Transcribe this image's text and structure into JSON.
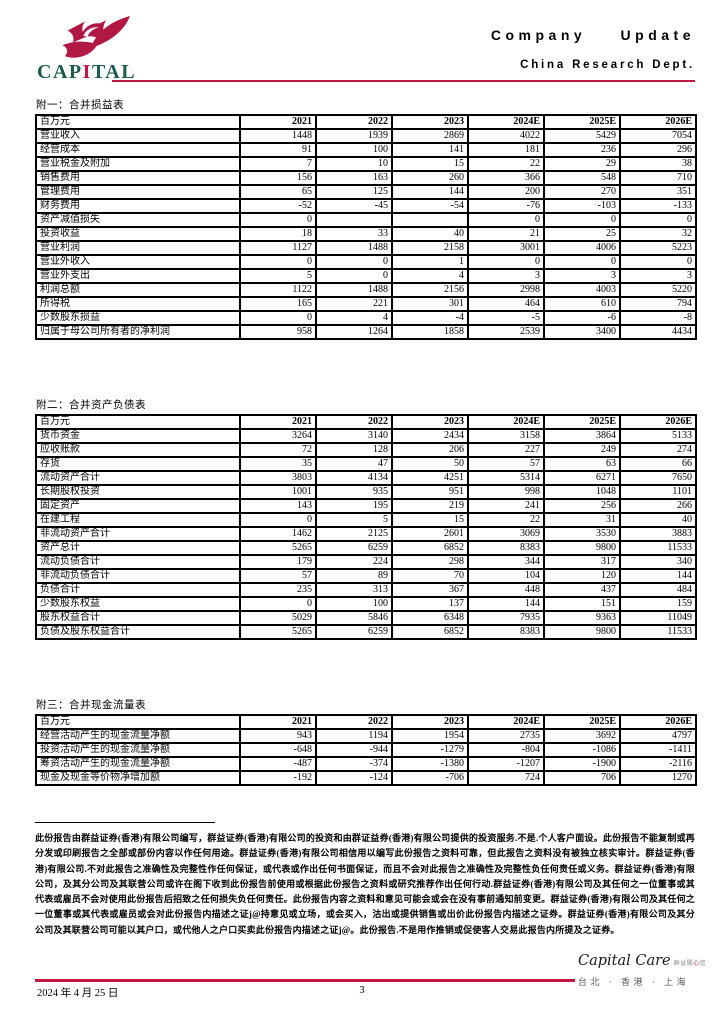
{
  "accent_color": "#c01743",
  "logo_green": "#1c5c4e",
  "header": {
    "logo": {
      "pre": "CAP",
      "accent_letter": "I",
      "post": "TAL"
    },
    "doc_type": "Company Update",
    "dept": "China Research Dept."
  },
  "tables": [
    {
      "caption": "附一：合并损益表",
      "unit_label": "百万元",
      "columns": [
        "2021",
        "2022",
        "2023",
        "2024E",
        "2025E",
        "2026E"
      ],
      "rows": [
        {
          "label": "营业收入",
          "values": [
            "1448",
            "1939",
            "2869",
            "4022",
            "5429",
            "7054"
          ]
        },
        {
          "label": "经营成本",
          "values": [
            "91",
            "100",
            "141",
            "181",
            "236",
            "296"
          ]
        },
        {
          "label": "营业税金及附加",
          "values": [
            "7",
            "10",
            "15",
            "22",
            "29",
            "38"
          ]
        },
        {
          "label": "销售费用",
          "values": [
            "156",
            "163",
            "260",
            "366",
            "548",
            "710"
          ]
        },
        {
          "label": "管理费用",
          "values": [
            "65",
            "125",
            "144",
            "200",
            "270",
            "351"
          ]
        },
        {
          "label": "财务费用",
          "values": [
            "-52",
            "-45",
            "-54",
            "-76",
            "-103",
            "-133"
          ]
        },
        {
          "label": "资产减值损失",
          "values": [
            "0",
            "",
            "",
            "0",
            "0",
            "0"
          ]
        },
        {
          "label": "投资收益",
          "values": [
            "18",
            "33",
            "40",
            "21",
            "25",
            "32"
          ]
        },
        {
          "label": "营业利润",
          "values": [
            "1127",
            "1488",
            "2158",
            "3001",
            "4006",
            "5223"
          ]
        },
        {
          "label": "营业外收入",
          "values": [
            "0",
            "0",
            "1",
            "0",
            "0",
            "0"
          ]
        },
        {
          "label": "营业外支出",
          "values": [
            "5",
            "0",
            "4",
            "3",
            "3",
            "3"
          ]
        },
        {
          "label": "利润总额",
          "values": [
            "1122",
            "1488",
            "2156",
            "2998",
            "4003",
            "5220"
          ]
        },
        {
          "label": "所得税",
          "values": [
            "165",
            "221",
            "301",
            "464",
            "610",
            "794"
          ]
        },
        {
          "label": "少数股东损益",
          "values": [
            "0",
            "4",
            "-4",
            "-5",
            "-6",
            "-8"
          ]
        },
        {
          "label": "归属于母公司所有者的净利润",
          "values": [
            "958",
            "1264",
            "1858",
            "2539",
            "3400",
            "4434"
          ]
        }
      ]
    },
    {
      "caption": "附二：合并资产负债表",
      "unit_label": "百万元",
      "columns": [
        "2021",
        "2022",
        "2023",
        "2024E",
        "2025E",
        "2026E"
      ],
      "rows": [
        {
          "label": "货币资金",
          "values": [
            "3264",
            "3140",
            "2434",
            "3158",
            "3864",
            "5133"
          ]
        },
        {
          "label": "应收账款",
          "values": [
            "72",
            "128",
            "206",
            "227",
            "249",
            "274"
          ]
        },
        {
          "label": "存货",
          "values": [
            "35",
            "47",
            "50",
            "57",
            "63",
            "66"
          ]
        },
        {
          "label": "流动资产合计",
          "values": [
            "3803",
            "4134",
            "4251",
            "5314",
            "6271",
            "7650"
          ]
        },
        {
          "label": "长期股权投资",
          "values": [
            "1001",
            "935",
            "951",
            "998",
            "1048",
            "1101"
          ]
        },
        {
          "label": "固定资产",
          "values": [
            "143",
            "195",
            "219",
            "241",
            "256",
            "266"
          ]
        },
        {
          "label": "在建工程",
          "values": [
            "0",
            "5",
            "15",
            "22",
            "31",
            "40"
          ]
        },
        {
          "label": "非流动资产合计",
          "values": [
            "1462",
            "2125",
            "2601",
            "3069",
            "3530",
            "3883"
          ]
        },
        {
          "label": "资产总计",
          "values": [
            "5265",
            "6259",
            "6852",
            "8383",
            "9800",
            "11533"
          ]
        },
        {
          "label": "流动负债合计",
          "values": [
            "179",
            "224",
            "298",
            "344",
            "317",
            "340"
          ]
        },
        {
          "label": "非流动负债合计",
          "values": [
            "57",
            "89",
            "70",
            "104",
            "120",
            "144"
          ]
        },
        {
          "label": "负债合计",
          "values": [
            "235",
            "313",
            "367",
            "448",
            "437",
            "484"
          ]
        },
        {
          "label": "少数股东权益",
          "values": [
            "0",
            "100",
            "137",
            "144",
            "151",
            "159"
          ]
        },
        {
          "label": "股东权益合计",
          "values": [
            "5029",
            "5846",
            "6348",
            "7935",
            "9363",
            "11049"
          ]
        },
        {
          "label": "负债及股东权益合计",
          "values": [
            "5265",
            "6259",
            "6852",
            "8383",
            "9800",
            "11533"
          ]
        }
      ]
    },
    {
      "caption": "附三：合并现金流量表",
      "unit_label": "百万元",
      "columns": [
        "2021",
        "2022",
        "2023",
        "2024E",
        "2025E",
        "2026E"
      ],
      "rows": [
        {
          "label": "经营活动产生的现金流量净额",
          "values": [
            "943",
            "1194",
            "1954",
            "2735",
            "3692",
            "4797"
          ]
        },
        {
          "label": "投资活动产生的现金流量净额",
          "values": [
            "-648",
            "-944",
            "-1279",
            "-804",
            "-1086",
            "-1411"
          ]
        },
        {
          "label": "筹资活动产生的现金流量净额",
          "values": [
            "-487",
            "-374",
            "-1380",
            "-1207",
            "-1900",
            "-2116"
          ]
        },
        {
          "label": "现金及现金等价物净增加额",
          "values": [
            "-192",
            "-124",
            "-706",
            "724",
            "706",
            "1270"
          ]
        }
      ]
    }
  ],
  "disclaimer": "此份报告由群益证券(香港)有限公司编写，群益证券(香港)有限公司的投资和由群证益券(香港)有限公司提供的投资服务.不是.个人客户面设。此份报告不能复制或再分发或印刷报告之全部或部份内容以作任何用途。群益证券(香港)有限公司相信用以编写此份报告之资料可靠，但此报告之资料没有被独立核实审计。群益证券(香港)有限公司.不对此报告之准确性及完整性作任何保证，或代表或作出任何书面保证，而且不会对此报告之准确性及完整性负任何责任或义务。群益证券(香港)有限公司，及其分公司及其联营公司或许在阁下收到此份报告前使用或根据此份报告之资料或研究推荐作出任何行动.群益证券(香港)有限公司及其任何之一位董事或其代表或雇员不会对使用此份报告后招致之任何损失负任何责任。此份报告内容之资料和意见可能会或会在没有事前通知前变更。群益证券(香港)有限公司及其任何之一位董事或其代表或雇员或会对此份报告内描述之证j@持意见或立场，或会买入，沽出或提供销售或出价此份报告内描述之证券。群益证券(香港)有限公司及其分公司及其联营公司可能以其户口，或代他人之户口买卖此份报告内描述之证j@。此份报告.不是用作推销或促使客人交易此报告内所提及之证券。",
  "footer": {
    "date": "2024 年 4 月 25 日",
    "page_number": "3",
    "brand_script": "Capital Care",
    "brand_chinese": {
      "pre": "群益關",
      "heart": "心",
      "post": "您"
    },
    "cities": "台北 · 香港 · 上海"
  }
}
